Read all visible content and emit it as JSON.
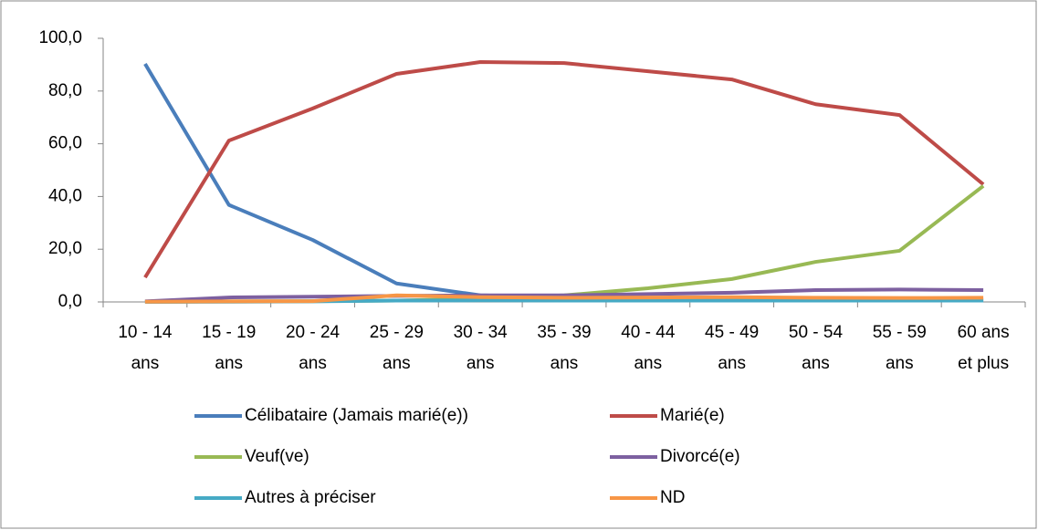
{
  "chart_data": {
    "type": "line",
    "categories": [
      [
        "10 - 14",
        "ans"
      ],
      [
        "15 - 19",
        "ans"
      ],
      [
        "20 - 24",
        "ans"
      ],
      [
        "25 - 29",
        "ans"
      ],
      [
        "30 - 34",
        "ans"
      ],
      [
        "35 - 39",
        "ans"
      ],
      [
        "40 - 44",
        "ans"
      ],
      [
        "45 - 49",
        "ans"
      ],
      [
        "50 - 54",
        "ans"
      ],
      [
        "55 - 59",
        "ans"
      ],
      [
        "60 ans",
        "et plus"
      ]
    ],
    "series": [
      {
        "name": "Célibataire (Jamais marié(e))",
        "color": "#4a7ebb",
        "values": [
          90.3,
          36.8,
          23.5,
          7.0,
          2.5,
          1.8,
          1.2,
          1.0,
          0.8,
          0.7,
          0.8
        ]
      },
      {
        "name": "Marié(e)",
        "color": "#be4b48",
        "values": [
          9.3,
          61.2,
          73.4,
          86.5,
          91.0,
          90.6,
          87.5,
          84.4,
          75.0,
          70.9,
          44.6
        ]
      },
      {
        "name": "Veuf(ve)",
        "color": "#98b954",
        "values": [
          0.1,
          0.2,
          0.3,
          0.5,
          1.2,
          2.5,
          5.2,
          8.7,
          15.2,
          19.4,
          44.0
        ]
      },
      {
        "name": "Divorcé(e)",
        "color": "#7d60a0",
        "values": [
          0.2,
          1.7,
          2.0,
          2.3,
          2.5,
          2.5,
          3.0,
          3.5,
          4.5,
          4.7,
          4.5
        ]
      },
      {
        "name": "Autres à préciser",
        "color": "#46aac5",
        "values": [
          0.0,
          0.1,
          0.2,
          0.5,
          0.6,
          0.5,
          0.5,
          0.5,
          0.5,
          0.5,
          0.5
        ]
      },
      {
        "name": "ND",
        "color": "#f79646",
        "values": [
          0.1,
          0.2,
          0.3,
          2.5,
          1.8,
          1.6,
          1.7,
          1.8,
          1.6,
          1.5,
          1.6
        ]
      }
    ],
    "ylim": [
      0,
      100
    ],
    "yticks": [
      {
        "value": 0,
        "label": "0,0"
      },
      {
        "value": 20,
        "label": "20,0"
      },
      {
        "value": 40,
        "label": "40,0"
      },
      {
        "value": 60,
        "label": "60,0"
      },
      {
        "value": 80,
        "label": "80,0"
      },
      {
        "value": 100,
        "label": "100,0"
      }
    ],
    "legend": "bottom"
  }
}
